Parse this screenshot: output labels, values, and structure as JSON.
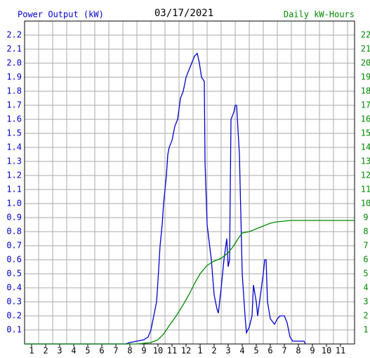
{
  "chart_data": {
    "type": "line",
    "title": "03/17/2021",
    "ylabel": "Power Output (kW)",
    "y2label": "Daily kW-Hours",
    "xlim": [
      0.5,
      24
    ],
    "xticks": [
      1,
      2,
      3,
      4,
      5,
      6,
      7,
      8,
      9,
      10,
      11,
      12,
      {
        "value": 13,
        "label": "1"
      },
      {
        "value": 14,
        "label": "2"
      },
      {
        "value": 15,
        "label": "3"
      },
      {
        "value": 16,
        "label": "4"
      },
      {
        "value": 17,
        "label": "5"
      },
      {
        "value": 18,
        "label": "6"
      },
      {
        "value": 19,
        "label": "7"
      },
      {
        "value": 20,
        "label": "8"
      },
      {
        "value": 21,
        "label": "9"
      },
      {
        "value": 22,
        "label": "10"
      },
      {
        "value": 23,
        "label": "11"
      }
    ],
    "ylim": [
      0,
      2.3
    ],
    "yticks": [
      0.1,
      0.2,
      0.3,
      0.4,
      0.5,
      0.6,
      0.7,
      0.8,
      0.9,
      {
        "value": 1,
        "label": "1.0"
      },
      1.1,
      1.2,
      1.3,
      1.4,
      1.5,
      1.6,
      1.7,
      1.8,
      1.9,
      {
        "value": 2,
        "label": "2.0"
      },
      2.1,
      2.2
    ],
    "y2lim": [
      0,
      23
    ],
    "y2ticks": [
      1,
      2,
      3,
      4,
      5,
      6,
      7,
      8,
      9,
      10,
      11,
      12,
      13,
      14,
      15,
      16,
      17,
      18,
      19,
      20,
      21,
      22
    ],
    "grid": true,
    "series": [
      {
        "name": "Power Output (kW)",
        "color": "#0000cc",
        "x": [
          0.5,
          7.7,
          8,
          8.5,
          9,
          9.3,
          9.5,
          9.7,
          9.9,
          10,
          10.15,
          10.3,
          10.4,
          10.6,
          10.7,
          10.8,
          11,
          11.2,
          11.4,
          11.6,
          11.8,
          12,
          12.2,
          12.4,
          12.6,
          12.8,
          12.95,
          13.1,
          13.3,
          13.35,
          13.5,
          13.8,
          14,
          14.2,
          14.3,
          14.5,
          14.7,
          14.9,
          15,
          15.1,
          15.2,
          15.4,
          15.5,
          15.6,
          15.8,
          16,
          16.2,
          16.3,
          16.5,
          16.7,
          16.8,
          17,
          17.1,
          17.3,
          17.5,
          17.6,
          17.7,
          17.8,
          18,
          18.3,
          18.5,
          18.7,
          19,
          19.2,
          19.4,
          19.6,
          20.4,
          20.5
        ],
        "values": [
          0,
          0,
          0.01,
          0.02,
          0.03,
          0.05,
          0.1,
          0.2,
          0.3,
          0.45,
          0.7,
          0.85,
          1.0,
          1.2,
          1.35,
          1.4,
          1.45,
          1.55,
          1.6,
          1.75,
          1.8,
          1.9,
          1.95,
          2.0,
          2.05,
          2.07,
          2.0,
          1.9,
          1.87,
          1.3,
          0.85,
          0.6,
          0.35,
          0.25,
          0.22,
          0.4,
          0.6,
          0.75,
          0.55,
          0.6,
          1.6,
          1.65,
          1.7,
          1.7,
          1.35,
          0.5,
          0.2,
          0.08,
          0.12,
          0.2,
          0.42,
          0.3,
          0.2,
          0.35,
          0.5,
          0.6,
          0.6,
          0.3,
          0.18,
          0.14,
          0.18,
          0.2,
          0.2,
          0.15,
          0.05,
          0.02,
          0.02,
          0
        ]
      },
      {
        "name": "Daily kW-Hours",
        "color": "#008800",
        "axis": "y2",
        "x": [
          0.5,
          8.5,
          9.5,
          10,
          10.4,
          10.8,
          11.3,
          11.8,
          12.2,
          12.6,
          13,
          13.5,
          14,
          14.5,
          15,
          15.4,
          15.7,
          16,
          16.5,
          17,
          17.5,
          18,
          18.5,
          19,
          19.5,
          24
        ],
        "values": [
          0,
          0,
          0.1,
          0.3,
          0.7,
          1.3,
          2.0,
          2.8,
          3.5,
          4.3,
          5.0,
          5.6,
          5.9,
          6.1,
          6.5,
          7.0,
          7.5,
          7.9,
          8.0,
          8.2,
          8.4,
          8.6,
          8.7,
          8.75,
          8.8,
          8.8
        ]
      }
    ]
  }
}
